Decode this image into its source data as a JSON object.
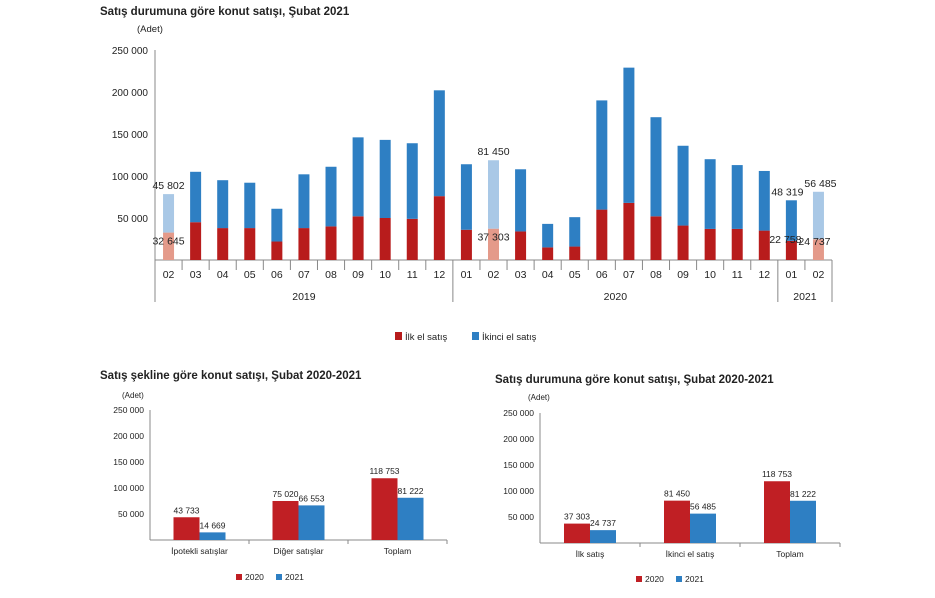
{
  "colors": {
    "first_sale": "#b81c1c",
    "second_hand": "#2e7fc3",
    "first_sale_light": "#e49a8a",
    "second_hand_light": "#a9c8e6",
    "y2020": "#c01f24",
    "y2021": "#2e7fc3",
    "axis": "#888888",
    "text": "#222222"
  },
  "chart_data": [
    {
      "type": "bar",
      "stacked": true,
      "title": "Satış durumuna göre konut satışı, Şubat 2021",
      "unit": "(Adet)",
      "ylim": [
        0,
        250000
      ],
      "yticks": [
        "",
        "50 000",
        "100 000",
        "150 000",
        "200 000",
        "250 000"
      ],
      "categories": [
        "02",
        "03",
        "04",
        "05",
        "06",
        "07",
        "08",
        "09",
        "10",
        "11",
        "12",
        "01",
        "02",
        "03",
        "04",
        "05",
        "06",
        "07",
        "08",
        "09",
        "10",
        "11",
        "12",
        "01",
        "02"
      ],
      "year_groups": [
        {
          "label": "2019",
          "from": 0,
          "to": 10
        },
        {
          "label": "2020",
          "from": 11,
          "to": 22
        },
        {
          "label": "2021",
          "from": 23,
          "to": 24
        }
      ],
      "highlight_indices": [
        0,
        12,
        24
      ],
      "series": [
        {
          "name": "İlk el satış",
          "values": [
            32645,
            45000,
            38000,
            38000,
            22000,
            38000,
            40000,
            52000,
            50000,
            49000,
            76000,
            36000,
            37303,
            34000,
            15000,
            16000,
            60000,
            68000,
            52000,
            41000,
            37000,
            37000,
            35000,
            22758,
            24737
          ]
        },
        {
          "name": "İkinci el satış",
          "values": [
            45802,
            60000,
            57000,
            54000,
            39000,
            64000,
            71000,
            94000,
            93000,
            90000,
            126000,
            78000,
            81450,
            74000,
            28000,
            35000,
            130000,
            161000,
            118000,
            95000,
            83000,
            76000,
            71000,
            48319,
            56485
          ]
        }
      ],
      "data_labels": [
        {
          "index": 0,
          "series": 0,
          "text": "32 645"
        },
        {
          "index": 0,
          "series": 1,
          "text": "45 802"
        },
        {
          "index": 12,
          "series": 0,
          "text": "37 303"
        },
        {
          "index": 12,
          "series": 1,
          "text": "81 450"
        },
        {
          "index": 23,
          "series": 0,
          "text": "22 758"
        },
        {
          "index": 23,
          "series": 1,
          "text": "48 319"
        },
        {
          "index": 24,
          "series": 0,
          "text": "24 737"
        },
        {
          "index": 24,
          "series": 1,
          "text": "56 485"
        }
      ],
      "legend": [
        "İlk el satış",
        "İkinci el satış"
      ]
    },
    {
      "type": "bar",
      "title": "Satış şekline göre konut satışı, Şubat 2020-2021",
      "unit": "(Adet)",
      "ylim": [
        0,
        250000
      ],
      "yticks": [
        "",
        "50 000",
        "100 000",
        "150 000",
        "200 000",
        "250 000"
      ],
      "categories": [
        "İpotekli satışlar",
        "Diğer satışlar",
        "Toplam"
      ],
      "series": [
        {
          "name": "2020",
          "values": [
            43733,
            75020,
            118753
          ],
          "labels": [
            "43 733",
            "75 020",
            "118 753"
          ]
        },
        {
          "name": "2021",
          "values": [
            14669,
            66553,
            81222
          ],
          "labels": [
            "14 669",
            "66 553",
            "81 222"
          ]
        }
      ],
      "legend": [
        "2020",
        "2021"
      ]
    },
    {
      "type": "bar",
      "title": "Satış durumuna göre konut satışı, Şubat 2020-2021",
      "unit": "(Adet)",
      "ylim": [
        0,
        250000
      ],
      "yticks": [
        "",
        "50 000",
        "100 000",
        "150 000",
        "200 000",
        "250 000"
      ],
      "categories": [
        "İlk satış",
        "İkinci el satış",
        "Toplam"
      ],
      "series": [
        {
          "name": "2020",
          "values": [
            37303,
            81450,
            118753
          ],
          "labels": [
            "37 303",
            "81 450",
            "118 753"
          ]
        },
        {
          "name": "2021",
          "values": [
            24737,
            56485,
            81222
          ],
          "labels": [
            "24 737",
            "56 485",
            "81 222"
          ]
        }
      ],
      "legend": [
        "2020",
        "2021"
      ]
    }
  ]
}
